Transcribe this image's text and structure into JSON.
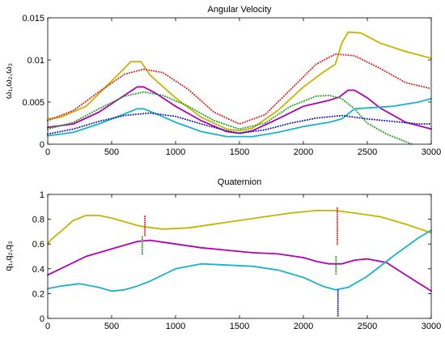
{
  "chart_data": [
    {
      "type": "line",
      "title": "Angular Velocity",
      "ylabel": "ω₁,ω₂,ω₃",
      "xlim": [
        0,
        3000
      ],
      "ylim": [
        0,
        0.015
      ],
      "x_ticks": [
        0,
        500,
        1000,
        1500,
        2000,
        2500,
        3000
      ],
      "x_tick_labels": [
        "0",
        "500",
        "1000",
        "1500",
        "2000",
        "2500",
        "3000"
      ],
      "y_ticks": [
        0,
        0.005,
        0.01,
        0.015
      ],
      "y_tick_labels": [
        "0",
        "0.005",
        "0.01",
        "0.015"
      ],
      "grid": false,
      "series": [
        {
          "color": "#c8b400",
          "style": "solid",
          "x": [
            0,
            100,
            300,
            500,
            650,
            730,
            800,
            1000,
            1200,
            1400,
            1500,
            1600,
            1800,
            2000,
            2150,
            2250,
            2300,
            2350,
            2450,
            2600,
            2800,
            3000
          ],
          "y": [
            0.003,
            0.0032,
            0.0045,
            0.0075,
            0.0098,
            0.0098,
            0.0082,
            0.0055,
            0.0032,
            0.0018,
            0.0016,
            0.0019,
            0.004,
            0.0068,
            0.0085,
            0.0095,
            0.012,
            0.0133,
            0.0132,
            0.012,
            0.011,
            0.0102
          ]
        },
        {
          "color": "#e02020",
          "style": "dotted",
          "x": [
            0,
            200,
            400,
            600,
            750,
            900,
            1100,
            1300,
            1500,
            1700,
            1900,
            2100,
            2250,
            2400,
            2600,
            2800,
            3000
          ],
          "y": [
            0.0028,
            0.004,
            0.0062,
            0.0083,
            0.0089,
            0.0085,
            0.0065,
            0.0038,
            0.0024,
            0.0035,
            0.0065,
            0.0095,
            0.0107,
            0.0105,
            0.009,
            0.0073,
            0.0066
          ]
        },
        {
          "color": "#b400b4",
          "style": "solid",
          "x": [
            0,
            200,
            400,
            600,
            700,
            750,
            850,
            1000,
            1200,
            1400,
            1500,
            1600,
            1800,
            2000,
            2200,
            2280,
            2350,
            2400,
            2500,
            2600,
            2800,
            3000
          ],
          "y": [
            0.002,
            0.0024,
            0.0038,
            0.0058,
            0.0068,
            0.0068,
            0.006,
            0.0045,
            0.0028,
            0.0015,
            0.0013,
            0.0016,
            0.003,
            0.0045,
            0.0052,
            0.0056,
            0.0064,
            0.0064,
            0.0055,
            0.0043,
            0.0026,
            0.0018
          ]
        },
        {
          "color": "#20a020",
          "style": "dotted",
          "x": [
            0,
            200,
            400,
            600,
            750,
            900,
            1100,
            1300,
            1500,
            1700,
            1900,
            2100,
            2200,
            2300,
            2400,
            2500,
            2650,
            2800,
            2850
          ],
          "y": [
            0.0018,
            0.0026,
            0.0042,
            0.0057,
            0.0062,
            0.0058,
            0.0045,
            0.0028,
            0.0018,
            0.0025,
            0.0045,
            0.0057,
            0.0058,
            0.0054,
            0.0042,
            0.0025,
            0.0012,
            0.0003,
            0.0
          ]
        },
        {
          "color": "#1ab4c8",
          "style": "solid",
          "x": [
            0,
            200,
            400,
            600,
            700,
            750,
            850,
            1000,
            1200,
            1400,
            1600,
            1800,
            2000,
            2200,
            2300,
            2400,
            2500,
            2700,
            2900,
            3000
          ],
          "y": [
            0.001,
            0.0014,
            0.0024,
            0.0036,
            0.0042,
            0.0042,
            0.0036,
            0.0026,
            0.0015,
            0.0009,
            0.0009,
            0.0014,
            0.0021,
            0.0026,
            0.003,
            0.0042,
            0.0043,
            0.0045,
            0.005,
            0.0054
          ]
        },
        {
          "color": "#1a1aa0",
          "style": "dotted",
          "x": [
            0,
            200,
            400,
            600,
            800,
            1000,
            1200,
            1400,
            1500,
            1700,
            1900,
            2100,
            2300,
            2500,
            2700,
            2900,
            3000
          ],
          "y": [
            0.0012,
            0.0018,
            0.0027,
            0.0034,
            0.0037,
            0.0033,
            0.0024,
            0.0016,
            0.0013,
            0.0017,
            0.0025,
            0.0031,
            0.0034,
            0.003,
            0.0027,
            0.0024,
            0.0024
          ]
        }
      ]
    },
    {
      "type": "line",
      "title": "Quaternion",
      "ylabel": "q₁,q₂,q₃",
      "xlim": [
        0,
        3000
      ],
      "ylim": [
        0,
        1
      ],
      "x_ticks": [
        0,
        500,
        1000,
        1500,
        2000,
        2500,
        3000
      ],
      "x_tick_labels": [
        "0",
        "500",
        "1000",
        "1500",
        "2000",
        "2500",
        "3000"
      ],
      "y_ticks": [
        0,
        0.2,
        0.4,
        0.6,
        0.8,
        1
      ],
      "y_tick_labels": [
        "0",
        "0.2",
        "0.4",
        "0.6",
        "0.8",
        "1"
      ],
      "grid": false,
      "series": [
        {
          "color": "#c8b400",
          "style": "solid",
          "x": [
            0,
            20,
            100,
            200,
            300,
            400,
            500,
            600,
            700,
            750,
            900,
            1100,
            1300,
            1500,
            1700,
            1900,
            2100,
            2250,
            2400,
            2600,
            2800,
            3000
          ],
          "y": [
            0.6,
            0.63,
            0.7,
            0.79,
            0.83,
            0.83,
            0.81,
            0.78,
            0.75,
            0.74,
            0.72,
            0.73,
            0.76,
            0.79,
            0.82,
            0.85,
            0.87,
            0.87,
            0.85,
            0.82,
            0.76,
            0.69
          ]
        },
        {
          "color": "#b400b4",
          "style": "solid",
          "x": [
            0,
            100,
            300,
            500,
            700,
            800,
            1000,
            1200,
            1400,
            1600,
            1800,
            2000,
            2100,
            2200,
            2300,
            2400,
            2500,
            2650,
            2800,
            3000
          ],
          "y": [
            0.35,
            0.4,
            0.5,
            0.56,
            0.62,
            0.63,
            0.6,
            0.57,
            0.55,
            0.53,
            0.52,
            0.49,
            0.46,
            0.44,
            0.44,
            0.47,
            0.48,
            0.45,
            0.35,
            0.22
          ]
        },
        {
          "color": "#1ab4c8",
          "style": "solid",
          "x": [
            0,
            100,
            250,
            400,
            500,
            600,
            700,
            800,
            1000,
            1200,
            1400,
            1600,
            1800,
            2000,
            2150,
            2250,
            2350,
            2500,
            2700,
            2900,
            3000
          ],
          "y": [
            0.24,
            0.26,
            0.28,
            0.25,
            0.22,
            0.23,
            0.26,
            0.3,
            0.4,
            0.44,
            0.43,
            0.42,
            0.39,
            0.33,
            0.26,
            0.23,
            0.25,
            0.34,
            0.5,
            0.65,
            0.71
          ]
        }
      ],
      "markers": [
        {
          "color": "#e02020",
          "x": 760,
          "y_from": 0.67,
          "y_to": 0.84
        },
        {
          "color": "#20a020",
          "x": 740,
          "y_from": 0.52,
          "y_to": 0.66
        },
        {
          "color": "#e02020",
          "x": 2265,
          "y_from": 0.6,
          "y_to": 0.9
        },
        {
          "color": "#20a020",
          "x": 2255,
          "y_from": 0.36,
          "y_to": 0.5
        },
        {
          "color": "#1a1aa0",
          "x": 2270,
          "y_from": 0.02,
          "y_to": 0.24
        }
      ]
    }
  ]
}
